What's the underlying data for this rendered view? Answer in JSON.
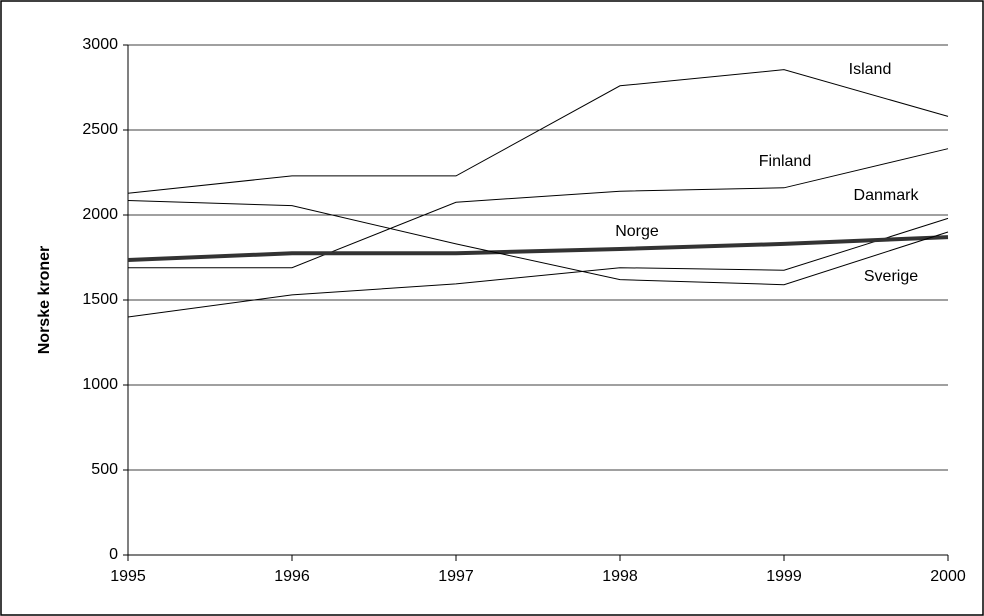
{
  "chart_data": {
    "type": "line",
    "ylabel": "Norske kroner",
    "x": [
      1995,
      1996,
      1997,
      1998,
      1999,
      2000
    ],
    "xlim": [
      1995,
      2000
    ],
    "xticks": [
      1995,
      1996,
      1997,
      1998,
      1999,
      2000
    ],
    "ylim": [
      0,
      3000
    ],
    "yticks": [
      0,
      500,
      1000,
      1500,
      2000,
      2500,
      3000
    ],
    "grid": true,
    "series": [
      {
        "name": "Island",
        "color": "#000000",
        "linewidth": 1,
        "values": [
          2128,
          2230,
          2230,
          2760,
          2855,
          2580
        ]
      },
      {
        "name": "Finland",
        "color": "#000000",
        "linewidth": 1,
        "values": [
          1690,
          1690,
          2075,
          2140,
          2160,
          2390
        ]
      },
      {
        "name": "Danmark",
        "color": "#000000",
        "linewidth": 1,
        "values": [
          1400,
          1530,
          1595,
          1690,
          1675,
          1980
        ]
      },
      {
        "name": "Norge",
        "color": "#333333",
        "linewidth": 4,
        "values": [
          1735,
          1775,
          1775,
          1800,
          1830,
          1870
        ]
      },
      {
        "name": "Sverige",
        "color": "#000000",
        "linewidth": 1,
        "values": [
          2085,
          2055,
          1830,
          1620,
          1590,
          1900
        ]
      }
    ]
  }
}
